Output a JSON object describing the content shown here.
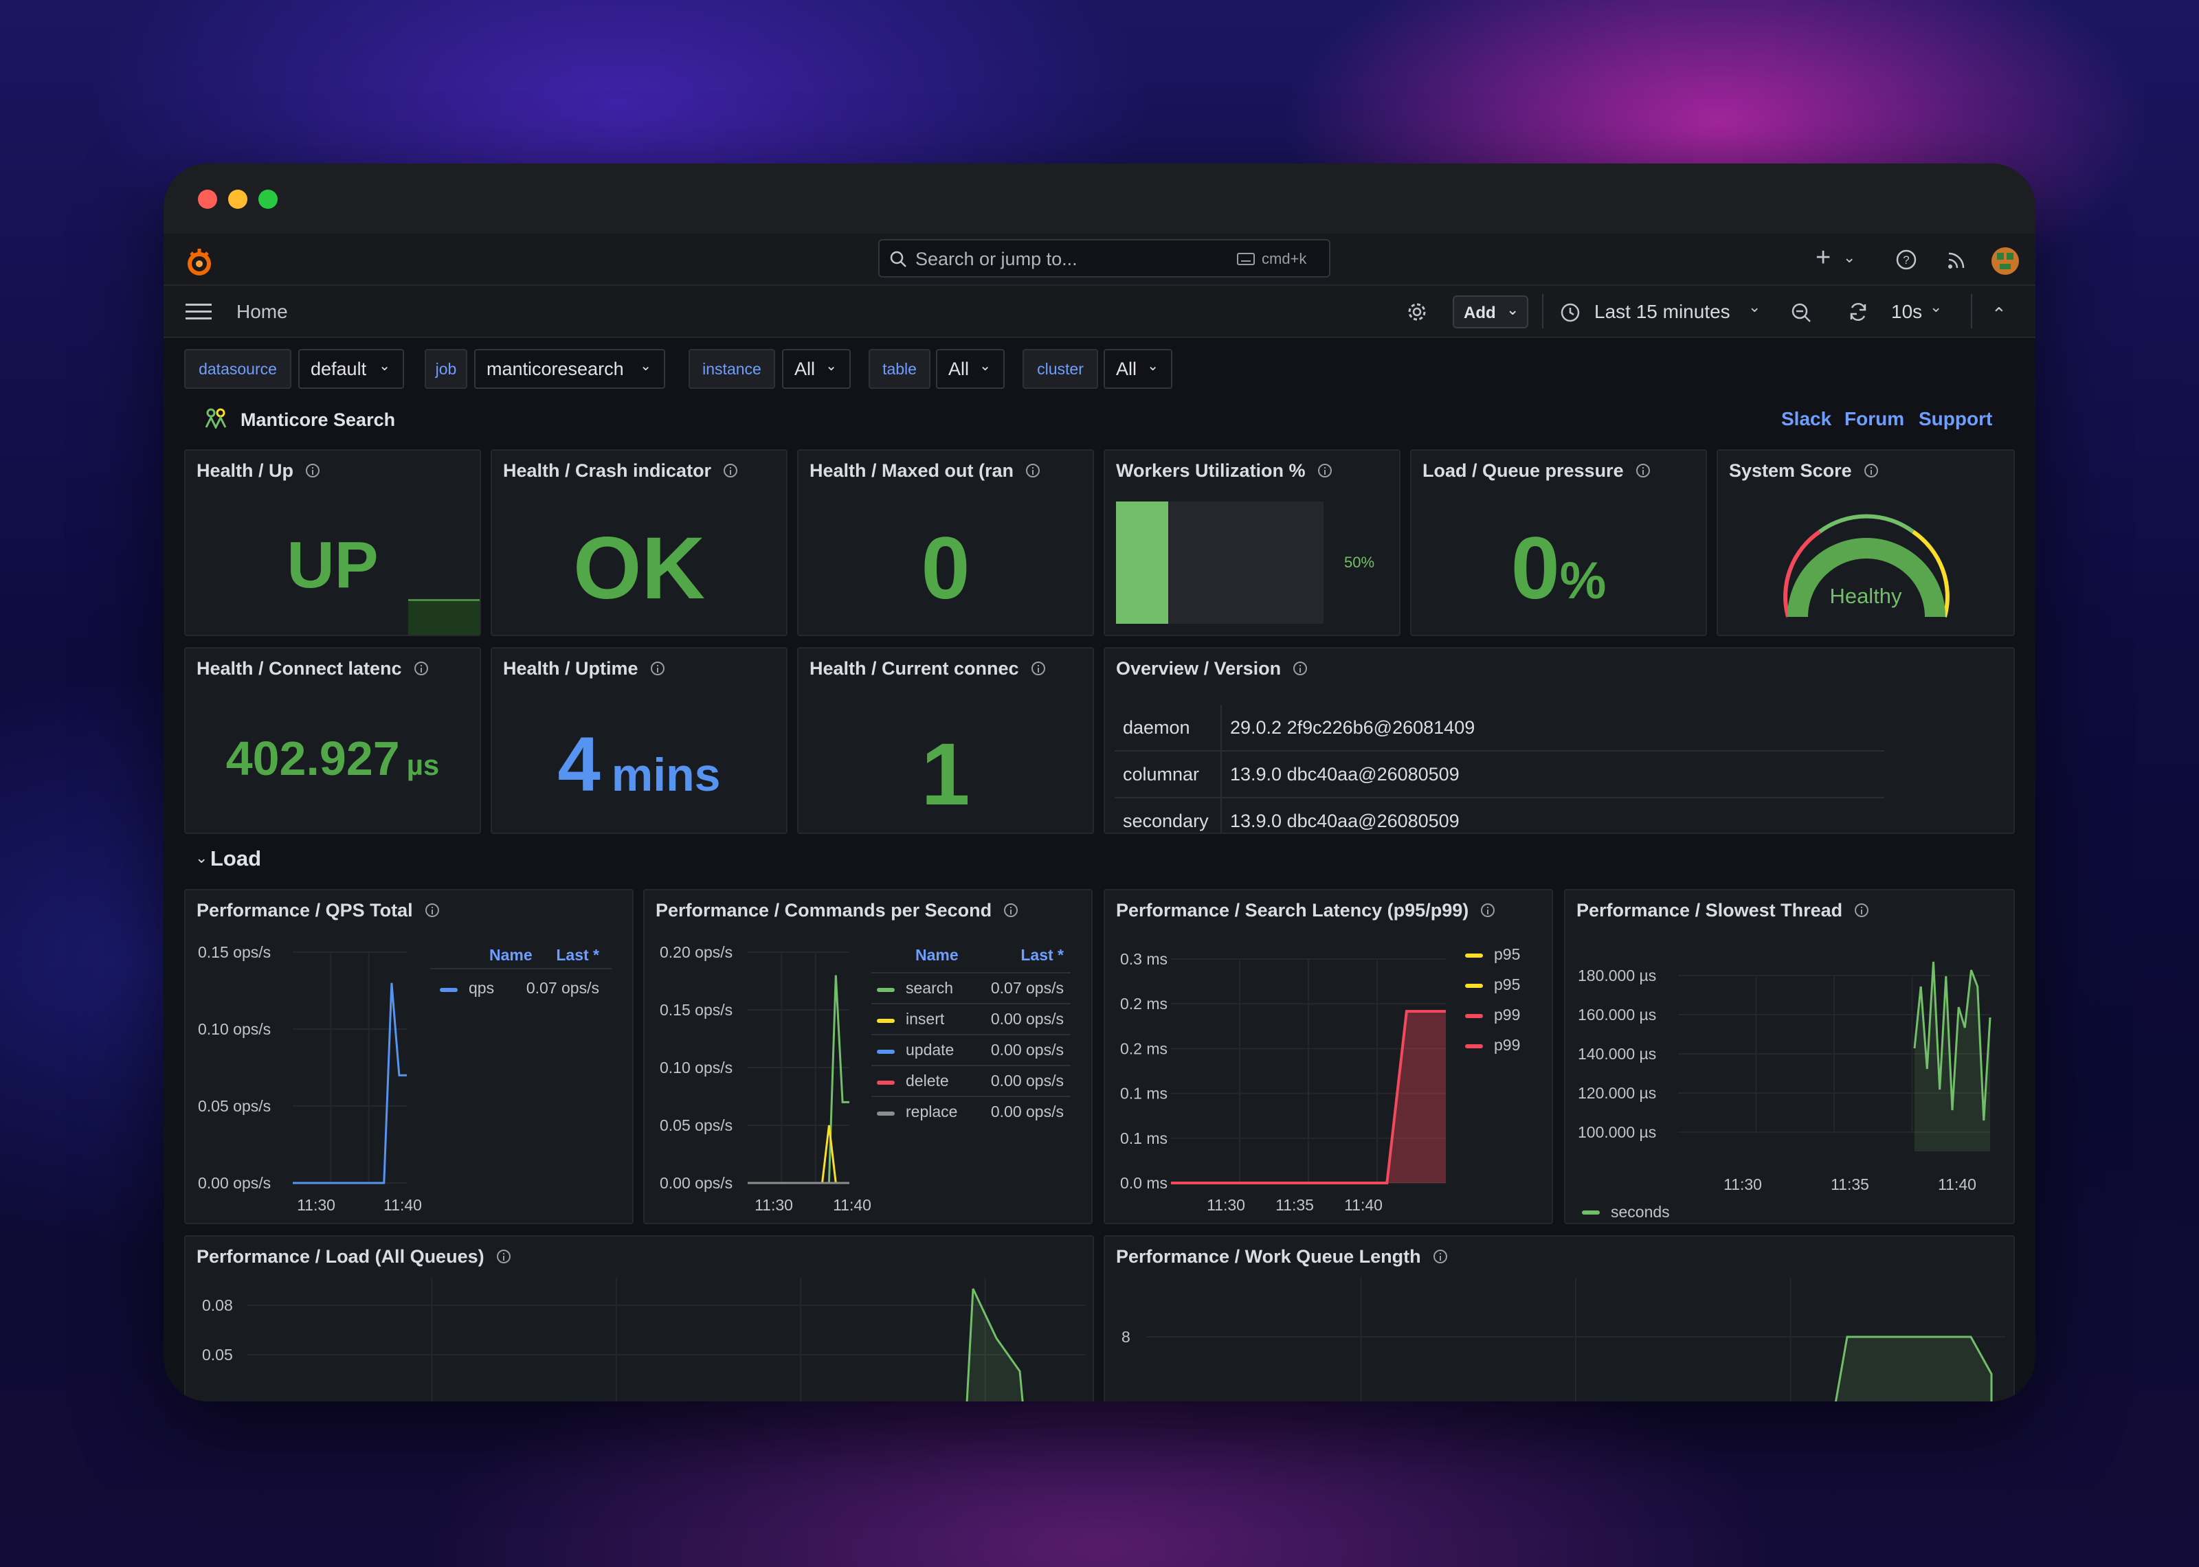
{
  "app": {
    "home_label": "Home",
    "search_placeholder": "Search or jump to...",
    "shortcut": "cmd+k"
  },
  "toolbar": {
    "add_label": "Add",
    "time_range": "Last 15 minutes",
    "refresh_interval": "10s"
  },
  "variables": [
    {
      "label": "datasource",
      "value": "default"
    },
    {
      "label": "job",
      "value": "manticoresearch"
    },
    {
      "label": "instance",
      "value": "All"
    },
    {
      "label": "table",
      "value": "All"
    },
    {
      "label": "cluster",
      "value": "All"
    }
  ],
  "dashboard": {
    "title": "Manticore Search",
    "links": [
      "Slack",
      "Forum",
      "Support"
    ]
  },
  "stat_panels": {
    "health_up": {
      "title": "Health / Up",
      "value": "UP"
    },
    "crash": {
      "title": "Health / Crash indicator",
      "value": "OK"
    },
    "maxed": {
      "title": "Health / Maxed out (ran",
      "value": "0"
    },
    "workers": {
      "title": "Workers Utilization %",
      "value": "50%",
      "fraction": 0.5
    },
    "queue": {
      "title": "Load / Queue pressure",
      "value": "0",
      "unit": "%"
    },
    "score": {
      "title": "System Score",
      "value": "Healthy"
    },
    "latency": {
      "title": "Health / Connect latenc",
      "value": "402.927",
      "unit": "µs"
    },
    "uptime": {
      "title": "Health / Uptime",
      "value": "4",
      "unit": "mins"
    },
    "connections": {
      "title": "Health / Current connec",
      "value": "1"
    }
  },
  "version": {
    "title": "Overview / Version",
    "rows": [
      {
        "name": "daemon",
        "value": "29.0.2 2f9c226b6@26081409"
      },
      {
        "name": "columnar",
        "value": "13.9.0 dbc40aa@26080509"
      },
      {
        "name": "secondary",
        "value": "13.9.0 dbc40aa@26080509"
      }
    ]
  },
  "section": {
    "load_title": "Load"
  },
  "colors": {
    "green": "#73bf69",
    "blue": "#5794f2",
    "yellow": "#fade2a",
    "red": "#f2495c",
    "grey": "#8e8e8e"
  },
  "chart_data": [
    {
      "type": "line",
      "title": "Performance / QPS Total",
      "legend_headers": [
        "Name",
        "Last *"
      ],
      "y_ticks": [
        "0.15 ops/s",
        "0.10 ops/s",
        "0.05 ops/s",
        "0.00 ops/s"
      ],
      "x_ticks": [
        "11:30",
        "11:40"
      ],
      "ylim": [
        0,
        0.15
      ],
      "series": [
        {
          "name": "qps",
          "last": "0.07 ops/s",
          "values": [
            0,
            0,
            0,
            0,
            0,
            0,
            0,
            0,
            0,
            0,
            0,
            0,
            0,
            0.13,
            0.07,
            0.07
          ]
        }
      ]
    },
    {
      "type": "line",
      "title": "Performance / Commands per Second",
      "legend_headers": [
        "Name",
        "Last *"
      ],
      "y_ticks": [
        "0.20 ops/s",
        "0.15 ops/s",
        "0.10 ops/s",
        "0.05 ops/s",
        "0.00 ops/s"
      ],
      "x_ticks": [
        "11:30",
        "11:40"
      ],
      "ylim": [
        0,
        0.2
      ],
      "series": [
        {
          "name": "search",
          "last": "0.07 ops/s",
          "values": [
            0,
            0,
            0,
            0,
            0,
            0,
            0,
            0,
            0,
            0,
            0,
            0,
            0,
            0.18,
            0.07,
            0.07
          ]
        },
        {
          "name": "insert",
          "last": "0.00 ops/s",
          "values": [
            0,
            0,
            0,
            0,
            0,
            0,
            0,
            0,
            0,
            0,
            0,
            0,
            0.05,
            0,
            0,
            0
          ]
        },
        {
          "name": "update",
          "last": "0.00 ops/s",
          "values": [
            0,
            0,
            0,
            0,
            0,
            0,
            0,
            0,
            0,
            0,
            0,
            0,
            0,
            0,
            0,
            0
          ]
        },
        {
          "name": "delete",
          "last": "0.00 ops/s",
          "values": [
            0,
            0,
            0,
            0,
            0,
            0,
            0,
            0,
            0,
            0,
            0,
            0,
            0,
            0,
            0,
            0
          ]
        },
        {
          "name": "replace",
          "last": "0.00 ops/s",
          "values": [
            0,
            0,
            0,
            0,
            0,
            0,
            0,
            0,
            0,
            0,
            0,
            0,
            0,
            0,
            0,
            0
          ]
        }
      ]
    },
    {
      "type": "area",
      "title": "Performance / Search Latency (p95/p99)",
      "y_ticks": [
        "0.3 ms",
        "0.2 ms",
        "0.2 ms",
        "0.1 ms",
        "0.1 ms",
        "0.0 ms"
      ],
      "x_ticks": [
        "11:30",
        "11:35",
        "11:40"
      ],
      "legend": [
        "p95",
        "p95",
        "p99",
        "p99"
      ],
      "ylim": [
        0,
        0.3
      ],
      "series": [
        {
          "name": "p99",
          "values": [
            0,
            0,
            0,
            0,
            0,
            0,
            0,
            0,
            0,
            0,
            0,
            0,
            0.23,
            0.23,
            0.23
          ]
        }
      ]
    },
    {
      "type": "line",
      "title": "Performance / Slowest Thread",
      "y_ticks": [
        "180.000 µs",
        "160.000 µs",
        "140.000 µs",
        "120.000 µs",
        "100.000 µs"
      ],
      "x_ticks": [
        "11:30",
        "11:35",
        "11:40"
      ],
      "legend": [
        "seconds"
      ],
      "ylim": [
        90,
        190
      ],
      "series": [
        {
          "name": "seconds",
          "values": [
            140,
            170,
            130,
            182,
            120,
            175,
            110,
            160,
            150,
            178,
            170,
            105,
            155
          ]
        }
      ]
    },
    {
      "type": "line",
      "title": "Performance / Load (All Queues)",
      "y_ticks": [
        "0.08",
        "0.05"
      ],
      "series": [
        {
          "values": [
            0.09,
            0.06,
            0.04
          ]
        }
      ]
    },
    {
      "type": "area",
      "title": "Performance / Work Queue Length",
      "y_ticks": [
        "8"
      ],
      "series": [
        {
          "values": [
            4,
            8,
            8,
            8,
            6
          ]
        }
      ]
    }
  ]
}
